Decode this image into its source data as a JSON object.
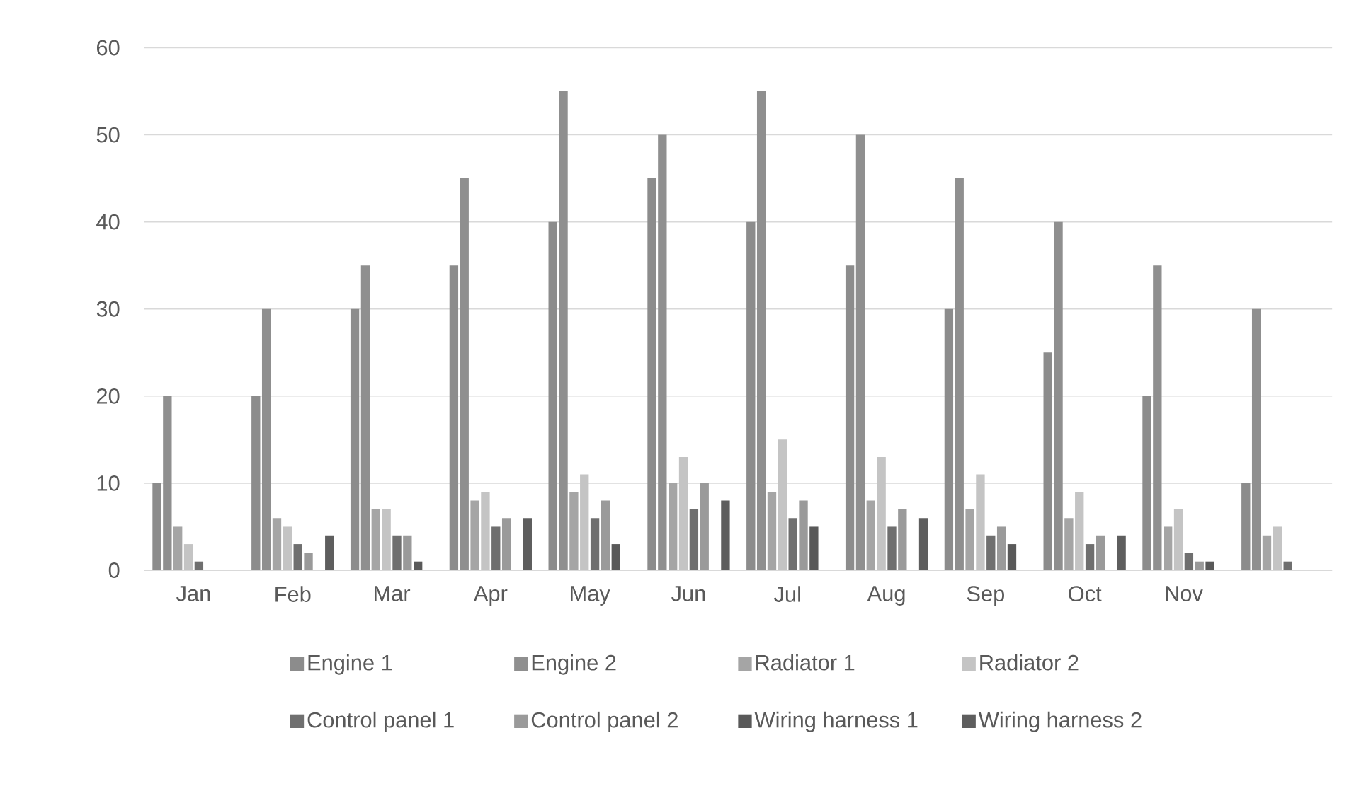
{
  "chart_data": {
    "type": "bar",
    "categories": [
      "Jan",
      "Feb",
      "Mar",
      "Apr",
      "May",
      "Jun",
      "Jul",
      "Aug",
      "Sep",
      "Oct",
      "Nov",
      null
    ],
    "series": [
      {
        "name": "Engine 1",
        "color": "#8c8c8c",
        "values": [
          10,
          20,
          30,
          35,
          40,
          45,
          40,
          35,
          30,
          25,
          20,
          10
        ]
      },
      {
        "name": "Engine 2",
        "color": "#8f8f8f",
        "values": [
          20,
          30,
          35,
          45,
          55,
          50,
          55,
          50,
          45,
          40,
          35,
          30
        ]
      },
      {
        "name": "Radiator 1",
        "color": "#a5a5a5",
        "values": [
          5,
          6,
          7,
          8,
          9,
          10,
          9,
          8,
          7,
          6,
          5,
          4
        ]
      },
      {
        "name": "Radiator 2",
        "color": "#c4c4c4",
        "values": [
          3,
          5,
          7,
          9,
          11,
          13,
          15,
          13,
          11,
          9,
          7,
          5
        ]
      },
      {
        "name": "Control panel 1",
        "color": "#6f6f6f",
        "values": [
          1,
          3,
          4,
          5,
          6,
          7,
          6,
          5,
          4,
          3,
          2,
          1
        ]
      },
      {
        "name": "Control panel 2",
        "color": "#9a9a9a",
        "values": [
          0,
          2,
          4,
          6,
          8,
          10,
          8,
          7,
          5,
          4,
          1,
          0
        ]
      },
      {
        "name": "Wiring harness 1",
        "color": "#595959",
        "values": [
          0,
          0,
          1,
          0,
          3,
          0,
          5,
          0,
          3,
          0,
          1,
          0
        ]
      },
      {
        "name": "Wiring harness 2",
        "color": "#5e5e5e",
        "values": [
          0,
          4,
          0,
          6,
          0,
          8,
          0,
          6,
          0,
          4,
          0,
          0
        ]
      }
    ],
    "ylim": [
      0,
      60
    ],
    "yticks": [
      0,
      10,
      20,
      30,
      40,
      50,
      60
    ],
    "grid": "y",
    "legend": "bottom"
  }
}
